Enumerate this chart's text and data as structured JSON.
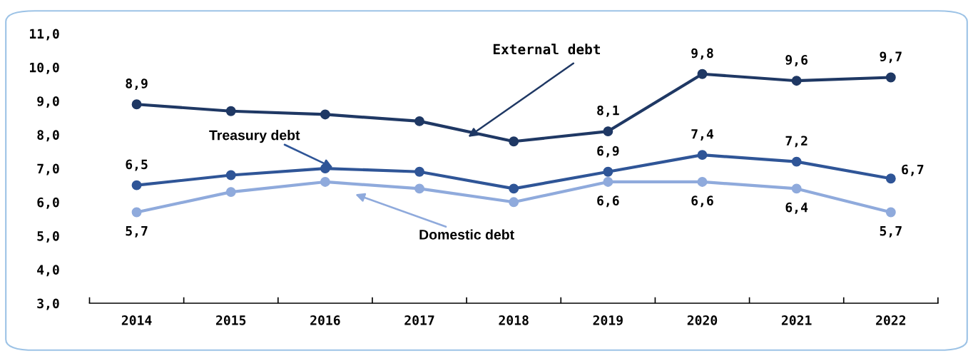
{
  "chart_data": {
    "type": "line",
    "categories": [
      "2014",
      "2015",
      "2016",
      "2017",
      "2018",
      "2019",
      "2020",
      "2021",
      "2022"
    ],
    "ylim": [
      3,
      11
    ],
    "yticks": [
      {
        "value": 3,
        "label": "3,0"
      },
      {
        "value": 4,
        "label": "4,0"
      },
      {
        "value": 5,
        "label": "5,0"
      },
      {
        "value": 6,
        "label": "6,0"
      },
      {
        "value": 7,
        "label": "7,0"
      },
      {
        "value": 8,
        "label": "8,0"
      },
      {
        "value": 9,
        "label": "9,0"
      },
      {
        "value": 10,
        "label": "10,0"
      },
      {
        "value": 11,
        "label": "11,0"
      }
    ],
    "grid": false,
    "legend": false,
    "marker": "circle",
    "line_style": "solid",
    "series": [
      {
        "name": "External debt",
        "color": "#1f3864",
        "values": [
          8.9,
          8.7,
          8.6,
          8.4,
          7.8,
          8.1,
          9.8,
          9.6,
          9.7
        ],
        "value_labels": [
          "8,9",
          null,
          null,
          null,
          null,
          "8,1",
          "9,8",
          "9,6",
          "9,7"
        ]
      },
      {
        "name": "Treasury debt",
        "color": "#2f5597",
        "values": [
          6.5,
          6.8,
          7.0,
          6.9,
          6.4,
          6.9,
          7.4,
          7.2,
          6.7
        ],
        "value_labels": [
          "6,5",
          null,
          null,
          null,
          null,
          "6,9",
          "7,4",
          "7,2",
          "6,7"
        ]
      },
      {
        "name": "Domestic debt",
        "color": "#8faadc",
        "values": [
          5.7,
          6.3,
          6.6,
          6.4,
          6.0,
          6.6,
          6.6,
          6.4,
          5.7
        ],
        "value_labels": [
          "5,7",
          null,
          null,
          null,
          null,
          "6,6",
          "6,6",
          "6,4",
          "5,7"
        ]
      }
    ]
  }
}
